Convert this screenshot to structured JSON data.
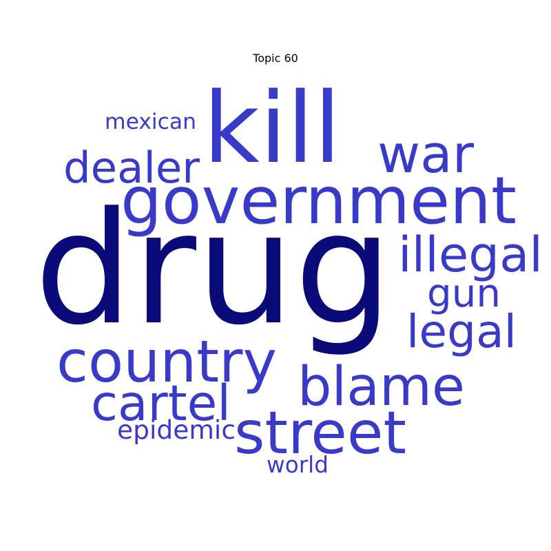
{
  "title": "Topic 60",
  "colors": {
    "primary": "#0a0a78",
    "secondary": "#3a3ac8"
  },
  "words": [
    {
      "text": "drug",
      "tier": "primary"
    },
    {
      "text": "kill",
      "tier": "secondary"
    },
    {
      "text": "government",
      "tier": "secondary"
    },
    {
      "text": "war",
      "tier": "secondary"
    },
    {
      "text": "dealer",
      "tier": "secondary"
    },
    {
      "text": "mexican",
      "tier": "secondary"
    },
    {
      "text": "illegal",
      "tier": "secondary"
    },
    {
      "text": "gun",
      "tier": "secondary"
    },
    {
      "text": "legal",
      "tier": "secondary"
    },
    {
      "text": "country",
      "tier": "secondary"
    },
    {
      "text": "blame",
      "tier": "secondary"
    },
    {
      "text": "cartel",
      "tier": "secondary"
    },
    {
      "text": "street",
      "tier": "secondary"
    },
    {
      "text": "epidemic",
      "tier": "secondary"
    },
    {
      "text": "world",
      "tier": "secondary"
    }
  ]
}
